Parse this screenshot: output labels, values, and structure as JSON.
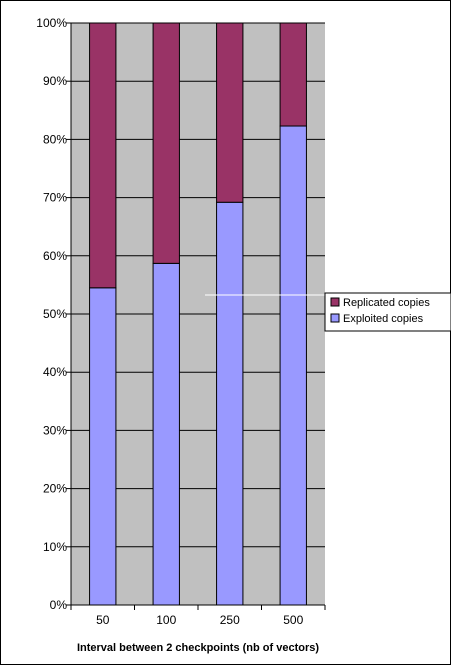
{
  "chart_data": {
    "type": "bar",
    "stacked": true,
    "percent_stacked": true,
    "categories": [
      "50",
      "100",
      "250",
      "500"
    ],
    "series": [
      {
        "name": "Exploited copies",
        "values": [
          54.5,
          58.7,
          69.2,
          82.3
        ],
        "color": "#9999ff"
      },
      {
        "name": "Replicated copies",
        "values": [
          45.5,
          41.3,
          30.8,
          17.7
        ],
        "color": "#993366"
      }
    ],
    "title": "",
    "xlabel": "Interval between 2 checkpoints (nb of vectors)",
    "ylabel": "",
    "ylim": [
      0,
      100
    ],
    "yticks": [
      "0%",
      "10%",
      "20%",
      "30%",
      "40%",
      "50%",
      "60%",
      "70%",
      "80%",
      "90%",
      "100%"
    ],
    "grid": true,
    "plot_background": "#c0c0c0",
    "legend_position": "right"
  }
}
